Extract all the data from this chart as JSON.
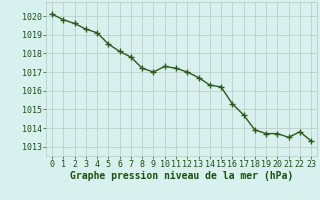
{
  "x": [
    0,
    1,
    2,
    3,
    4,
    5,
    6,
    7,
    8,
    9,
    10,
    11,
    12,
    13,
    14,
    15,
    16,
    17,
    18,
    19,
    20,
    21,
    22,
    23
  ],
  "y": [
    1020.1,
    1019.8,
    1019.6,
    1019.3,
    1019.1,
    1018.5,
    1018.1,
    1017.8,
    1017.2,
    1017.0,
    1017.3,
    1017.2,
    1017.0,
    1016.7,
    1016.3,
    1016.2,
    1015.3,
    1014.7,
    1013.9,
    1013.7,
    1013.7,
    1013.5,
    1013.8,
    1013.3
  ],
  "line_color": "#2d5a1b",
  "marker_color": "#2d5a1b",
  "bg_color": "#d8f0ee",
  "grid_color": "#b8c8c0",
  "xlabel": "Graphe pression niveau de la mer (hPa)",
  "xlabel_color": "#1a5010",
  "tick_color": "#1a5010",
  "ylim": [
    1012.5,
    1020.75
  ],
  "yticks": [
    1013,
    1014,
    1015,
    1016,
    1017,
    1018,
    1019,
    1020
  ],
  "xticks": [
    0,
    1,
    2,
    3,
    4,
    5,
    6,
    7,
    8,
    9,
    10,
    11,
    12,
    13,
    14,
    15,
    16,
    17,
    18,
    19,
    20,
    21,
    22,
    23
  ],
  "marker_size": 2.5,
  "line_width": 1.0,
  "font_size": 6,
  "xlabel_fontsize": 7
}
